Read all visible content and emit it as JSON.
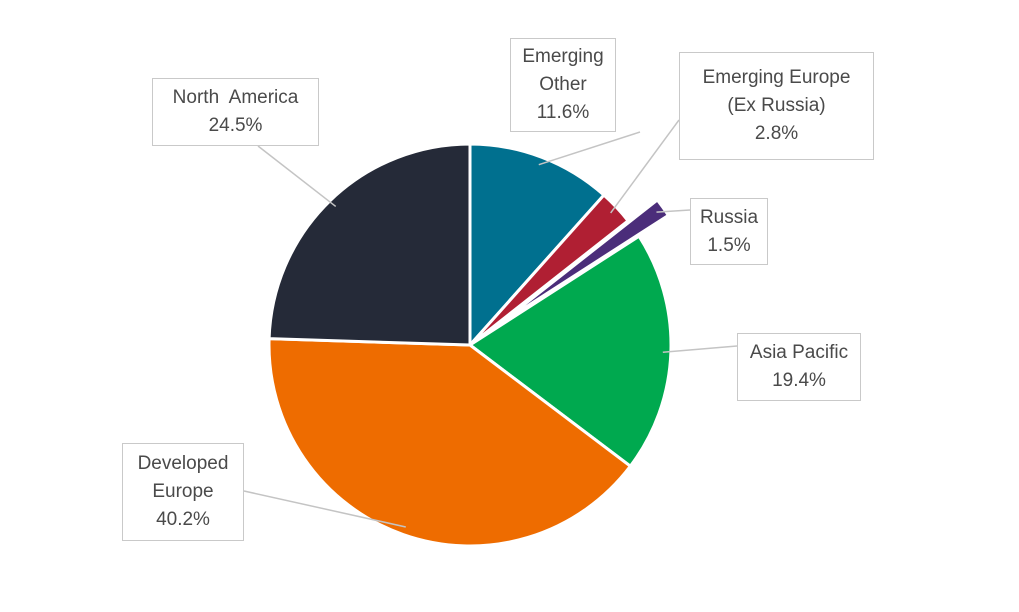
{
  "chart_data": {
    "type": "pie",
    "slices": [
      {
        "lines": [
          "Emerging",
          "Other"
        ],
        "value": 11.6,
        "value_label": "11.6%",
        "color": "#00708f"
      },
      {
        "lines": [
          "Emerging Europe",
          "(Ex Russia)"
        ],
        "value": 2.8,
        "value_label": "2.8%",
        "color": "#b01f33"
      },
      {
        "lines": [
          "Russia"
        ],
        "value": 1.5,
        "value_label": "1.5%",
        "color": "#4b2d7a"
      },
      {
        "lines": [
          "Asia Pacific"
        ],
        "value": 19.4,
        "value_label": "19.4%",
        "color": "#00a94f"
      },
      {
        "lines": [
          "Developed",
          "Europe"
        ],
        "value": 40.2,
        "value_label": "40.2%",
        "color": "#ee6c00"
      },
      {
        "lines": [
          "North  America"
        ],
        "value": 24.5,
        "value_label": "24.5%",
        "color": "#252a38"
      }
    ],
    "start_angle_deg": 0,
    "direction": "clockwise",
    "exploded_slice": "Russia",
    "legend": "none",
    "data_labels": "callout boxes with leader lines"
  }
}
